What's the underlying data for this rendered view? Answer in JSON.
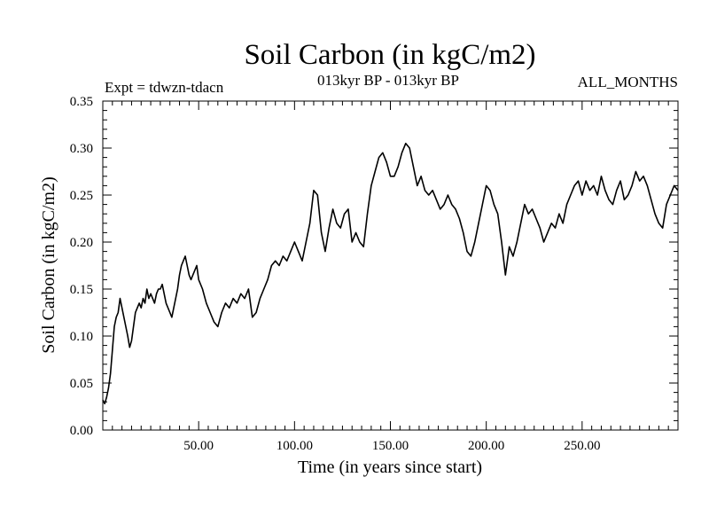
{
  "chart_data": {
    "type": "line",
    "title": "Soil Carbon (in kgC/m2)",
    "subtitle": "013kyr BP - 013kyr BP",
    "expt_label": "Expt = tdwzn-tdacn",
    "months_label": "ALL_MONTHS",
    "xlabel": "Time (in years since start)",
    "ylabel": "Soil Carbon (in kgC/m2)",
    "xlim": [
      0,
      300
    ],
    "ylim": [
      0,
      0.35
    ],
    "x_ticks": [
      50,
      100,
      150,
      200,
      250
    ],
    "x_tick_labels": [
      "50.00",
      "100.00",
      "150.00",
      "200.00",
      "250.00"
    ],
    "y_ticks": [
      0,
      0.05,
      0.1,
      0.15,
      0.2,
      0.25,
      0.3,
      0.35
    ],
    "y_tick_labels": [
      "0.00",
      "0.05",
      "0.10",
      "0.15",
      "0.20",
      "0.25",
      "0.30",
      "0.35"
    ],
    "grid": false,
    "line_color": "#000000",
    "series": [
      {
        "x": [
          0,
          1,
          2,
          3,
          4,
          5,
          6,
          7,
          8,
          9,
          10,
          11,
          12,
          13,
          14,
          15,
          16,
          17,
          18,
          19,
          20,
          21,
          22,
          23,
          24,
          25,
          26,
          27,
          28,
          29,
          30,
          31,
          32,
          33,
          34,
          35,
          36,
          37,
          38,
          39,
          40,
          41,
          42,
          43,
          44,
          45,
          46,
          47,
          48,
          49,
          50,
          52,
          54,
          56,
          58,
          60,
          62,
          64,
          66,
          68,
          70,
          72,
          74,
          76,
          78,
          80,
          82,
          84,
          86,
          88,
          90,
          92,
          94,
          96,
          98,
          100,
          102,
          104,
          106,
          108,
          110,
          112,
          114,
          116,
          118,
          120,
          122,
          124,
          126,
          128,
          130,
          132,
          134,
          136,
          138,
          140,
          142,
          144,
          146,
          148,
          150,
          152,
          154,
          156,
          158,
          160,
          162,
          164,
          166,
          168,
          170,
          172,
          174,
          176,
          178,
          180,
          182,
          184,
          186,
          188,
          190,
          192,
          194,
          196,
          198,
          200,
          202,
          204,
          206,
          208,
          210,
          212,
          214,
          216,
          218,
          220,
          222,
          224,
          226,
          228,
          230,
          232,
          234,
          236,
          238,
          240,
          242,
          244,
          246,
          248,
          250,
          252,
          254,
          256,
          258,
          260,
          262,
          264,
          266,
          268,
          270,
          272,
          274,
          276,
          278,
          280,
          282,
          284,
          286,
          288,
          290,
          292,
          294,
          296,
          298,
          300
        ],
        "values": [
          0.032,
          0.028,
          0.035,
          0.045,
          0.06,
          0.085,
          0.11,
          0.12,
          0.125,
          0.14,
          0.13,
          0.12,
          0.11,
          0.1,
          0.088,
          0.095,
          0.11,
          0.125,
          0.13,
          0.135,
          0.13,
          0.14,
          0.135,
          0.15,
          0.14,
          0.145,
          0.14,
          0.135,
          0.145,
          0.15,
          0.15,
          0.155,
          0.145,
          0.135,
          0.13,
          0.125,
          0.12,
          0.13,
          0.14,
          0.15,
          0.165,
          0.175,
          0.18,
          0.185,
          0.175,
          0.165,
          0.16,
          0.165,
          0.17,
          0.175,
          0.16,
          0.15,
          0.135,
          0.125,
          0.115,
          0.11,
          0.125,
          0.135,
          0.13,
          0.14,
          0.135,
          0.145,
          0.14,
          0.15,
          0.12,
          0.125,
          0.14,
          0.15,
          0.16,
          0.175,
          0.18,
          0.175,
          0.185,
          0.18,
          0.19,
          0.2,
          0.19,
          0.18,
          0.2,
          0.22,
          0.255,
          0.25,
          0.21,
          0.19,
          0.215,
          0.235,
          0.22,
          0.215,
          0.23,
          0.235,
          0.2,
          0.21,
          0.2,
          0.195,
          0.23,
          0.26,
          0.275,
          0.29,
          0.295,
          0.285,
          0.27,
          0.27,
          0.28,
          0.295,
          0.305,
          0.3,
          0.28,
          0.26,
          0.27,
          0.255,
          0.25,
          0.255,
          0.245,
          0.235,
          0.24,
          0.25,
          0.24,
          0.235,
          0.225,
          0.21,
          0.19,
          0.185,
          0.2,
          0.22,
          0.24,
          0.26,
          0.255,
          0.24,
          0.23,
          0.2,
          0.165,
          0.195,
          0.185,
          0.2,
          0.22,
          0.24,
          0.23,
          0.235,
          0.225,
          0.215,
          0.2,
          0.21,
          0.22,
          0.215,
          0.23,
          0.22,
          0.24,
          0.25,
          0.26,
          0.265,
          0.25,
          0.265,
          0.255,
          0.26,
          0.25,
          0.27,
          0.255,
          0.245,
          0.24,
          0.255,
          0.265,
          0.245,
          0.25,
          0.26,
          0.275,
          0.265,
          0.27,
          0.26,
          0.245,
          0.23,
          0.22,
          0.215,
          0.24,
          0.25,
          0.26,
          0.255
        ]
      }
    ]
  }
}
